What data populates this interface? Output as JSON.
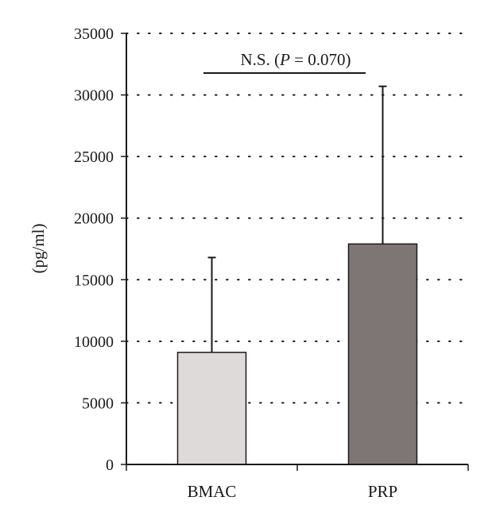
{
  "chart_data": {
    "type": "bar",
    "categories": [
      "BMAC",
      "PRP"
    ],
    "values": [
      9100,
      17900
    ],
    "error_upper": [
      16800,
      30700
    ],
    "ylabel": "(pg/ml)",
    "ylim": [
      0,
      35000
    ],
    "yticks": [
      "0",
      "5000",
      "10000",
      "15000",
      "20000",
      "25000",
      "30000",
      "35000"
    ],
    "grid": true,
    "bar_colors": [
      "#dedad9",
      "#7d7674"
    ],
    "annotation": {
      "prefix": "N.S. (",
      "italic": "P",
      "suffix": " = 0.070)"
    }
  }
}
